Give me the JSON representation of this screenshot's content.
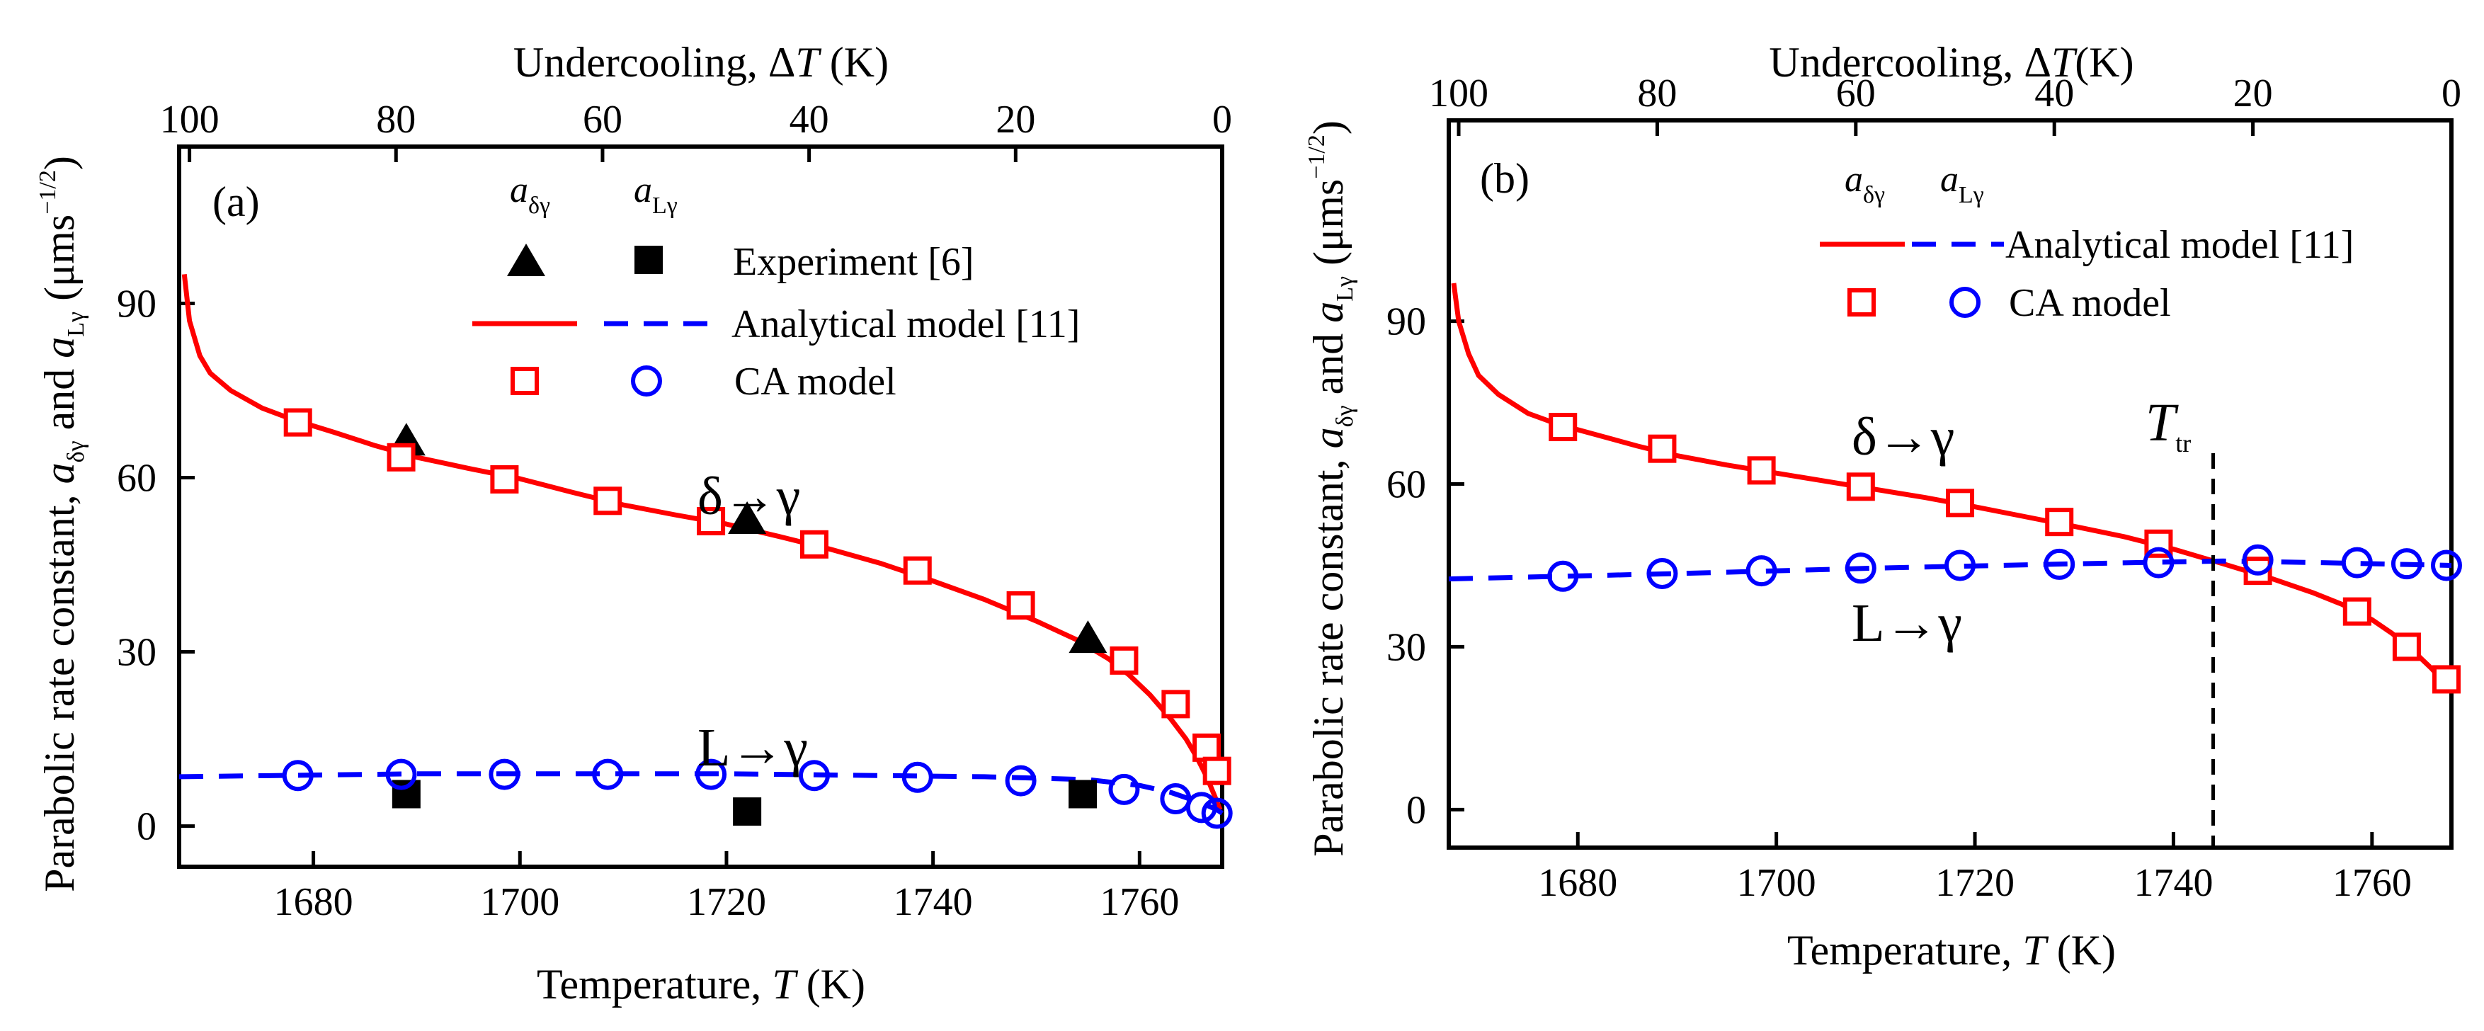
{
  "chart_data": [
    {
      "type": "line",
      "panel_label": "(a)",
      "xlabel_prefix": "Temperature, ",
      "xlabel_var": "T",
      "xlabel_unit": " (K)",
      "x2label_prefix": "Undercooling, Δ",
      "x2label_var": "T",
      "x2label_unit": " (K)",
      "ylabel_prefix": "Parabolic rate constant,  ",
      "ylabel_unit": " (μms",
      "ylabel_exp": "−1/2",
      "ylabel_close": ")",
      "ylabel_and": " and ",
      "xlim": [
        1667,
        1768
      ],
      "ylim": [
        -7,
        117
      ],
      "x2lim": [
        101,
        0
      ],
      "x_ticks": [
        1680,
        1700,
        1720,
        1740,
        1760
      ],
      "x2_ticks": [
        100,
        80,
        60,
        40,
        20,
        0
      ],
      "y_ticks": [
        0,
        30,
        60,
        90
      ],
      "legend": {
        "sym_a_delta": "a",
        "sym_a_delta_sub": "δγ",
        "sym_a_L": "a",
        "sym_a_L_sub": "Lγ",
        "experiment": "Experiment [6]",
        "analytical": "Analytical model [11]",
        "ca": " CA model"
      },
      "annotations": {
        "delta_gamma": "δ→γ",
        "L_gamma": "L→γ"
      },
      "series": [
        {
          "name": "Analytical model δ→γ",
          "style": "solid",
          "color": "#ff0000",
          "x": [
            1667.5,
            1668,
            1669,
            1670,
            1672,
            1675,
            1678,
            1682,
            1686,
            1690,
            1695,
            1700,
            1705,
            1710,
            1715,
            1720,
            1725,
            1730,
            1735,
            1740,
            1745,
            1750,
            1754,
            1757,
            1759,
            1761,
            1763,
            1764.5,
            1765.5,
            1766.5,
            1767.2,
            1767.8
          ],
          "y": [
            95,
            87,
            81,
            78,
            75,
            72,
            70,
            67.8,
            65.5,
            63.5,
            61.6,
            59.8,
            57.5,
            55.3,
            53.6,
            52,
            49.9,
            47.7,
            45.2,
            42.2,
            39,
            35.3,
            32,
            28.8,
            26,
            22.6,
            18.5,
            15,
            12,
            8.5,
            5.5,
            2.8
          ]
        },
        {
          "name": "Analytical model L→γ",
          "style": "dashed",
          "color": "#0000ff",
          "x": [
            1667,
            1690,
            1720,
            1745,
            1755,
            1760,
            1763,
            1765,
            1766.5,
            1767.5,
            1768
          ],
          "y": [
            8.5,
            9,
            9,
            8.5,
            8,
            7,
            5.8,
            4.6,
            3.6,
            2.8,
            2.2
          ]
        },
        {
          "name": "Experiment δγ",
          "marker": "triangle",
          "color": "#000000",
          "x": [
            1689,
            1722,
            1755
          ],
          "y": [
            66,
            52.5,
            32
          ]
        },
        {
          "name": "Experiment Lγ",
          "marker": "square-filled",
          "color": "#000000",
          "x": [
            1689,
            1722,
            1754.5
          ],
          "y": [
            5.5,
            2.5,
            5.5
          ]
        },
        {
          "name": "CA model δγ",
          "marker": "square-open",
          "color": "#ff0000",
          "x": [
            1678.5,
            1688.5,
            1698.5,
            1708.5,
            1718.5,
            1728.5,
            1738.5,
            1748.5,
            1758.5,
            1763.5,
            1766.5,
            1767.5
          ],
          "y": [
            69.5,
            63.5,
            59.7,
            56,
            52.5,
            48.5,
            44,
            38,
            28.5,
            21,
            13.5,
            9.5
          ]
        },
        {
          "name": "CA model Lγ",
          "marker": "circle-open",
          "color": "#0000ff",
          "x": [
            1678.5,
            1688.5,
            1698.5,
            1708.5,
            1718.5,
            1728.5,
            1738.5,
            1748.5,
            1758.5,
            1763.5,
            1766,
            1767.5
          ],
          "y": [
            8.7,
            8.9,
            8.9,
            8.9,
            8.9,
            8.7,
            8.4,
            7.8,
            6.3,
            4.7,
            3.2,
            2.2
          ]
        }
      ]
    },
    {
      "type": "line",
      "panel_label": "(b)",
      "xlabel_prefix": "Temperature, ",
      "xlabel_var": "T",
      "xlabel_unit": " (K)",
      "x2label_prefix": "Undercooling, Δ",
      "x2label_var": "T",
      "x2label_unit": "(K)",
      "ylabel_prefix": "Parabolic rate constant,  ",
      "ylabel_unit": " (μms",
      "ylabel_exp": "−1/2",
      "ylabel_close": ")",
      "ylabel_and": " and ",
      "xlim": [
        1667,
        1768
      ],
      "ylim": [
        -7,
        127
      ],
      "x2lim": [
        101,
        0
      ],
      "x_ticks": [
        1680,
        1700,
        1720,
        1740,
        1760
      ],
      "x2_ticks": [
        100,
        80,
        60,
        40,
        20,
        0
      ],
      "y_ticks": [
        0,
        30,
        60,
        90
      ],
      "legend": {
        "sym_a_delta": "a",
        "sym_a_delta_sub": "δγ",
        "sym_a_L": "a",
        "sym_a_L_sub": "Lγ",
        "analytical": "Analytical model [11]",
        "ca": "CA model"
      },
      "annotations": {
        "delta_gamma": "δ→γ",
        "L_gamma": "L→γ",
        "ttr": "T",
        "ttr_sub": "tr",
        "ttr_x": 1744
      },
      "series": [
        {
          "name": "Analytical model δ→γ",
          "style": "solid",
          "color": "#ff0000",
          "x": [
            1667.5,
            1668,
            1669,
            1670,
            1672,
            1675,
            1678,
            1682,
            1686,
            1690,
            1695,
            1700,
            1705,
            1710,
            1715,
            1720,
            1725,
            1730,
            1735,
            1740,
            1745,
            1750,
            1754,
            1757,
            1760,
            1762,
            1764,
            1766,
            1767.5
          ],
          "y": [
            97,
            90,
            84,
            80,
            76.5,
            73,
            71,
            69,
            67,
            65.2,
            63.5,
            62,
            60.5,
            59,
            57.5,
            55.8,
            54,
            52.2,
            50.3,
            48,
            45.3,
            42.5,
            40,
            37.8,
            35,
            32.5,
            29.5,
            26,
            23
          ]
        },
        {
          "name": "Analytical model L→γ",
          "style": "dashed",
          "color": "#0000ff",
          "x": [
            1667,
            1690,
            1710,
            1730,
            1745,
            1755,
            1768
          ],
          "y": [
            42.5,
            43.5,
            44.5,
            45.3,
            45.8,
            45.5,
            45
          ]
        },
        {
          "name": "CA model δγ",
          "marker": "square-open",
          "color": "#ff0000",
          "x": [
            1678.5,
            1688.5,
            1698.5,
            1708.5,
            1718.5,
            1728.5,
            1738.5,
            1748.5,
            1758.5,
            1763.5,
            1767.5
          ],
          "y": [
            70.5,
            66.5,
            62.5,
            59.5,
            56.5,
            53,
            49,
            44,
            36.5,
            30,
            24
          ]
        },
        {
          "name": "CA model Lγ",
          "marker": "circle-open",
          "color": "#0000ff",
          "x": [
            1678.5,
            1688.5,
            1698.5,
            1708.5,
            1718.5,
            1728.5,
            1738.5,
            1748.5,
            1758.5,
            1763.5,
            1767.5
          ],
          "y": [
            43,
            43.5,
            44,
            44.5,
            45,
            45.2,
            45.5,
            46,
            45.5,
            45.3,
            45
          ]
        }
      ]
    }
  ]
}
